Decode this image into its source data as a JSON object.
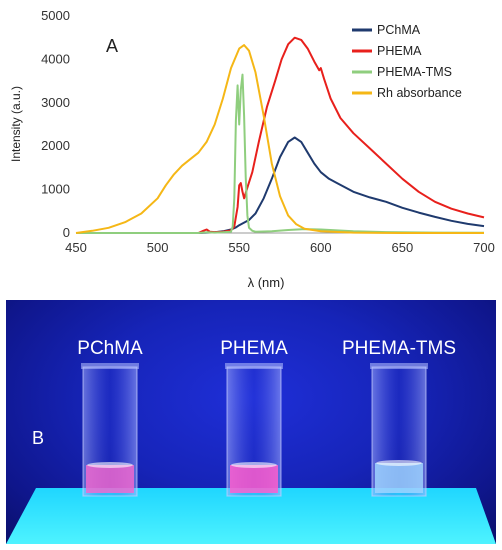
{
  "chart_data": {
    "type": "line",
    "panel_label": "A",
    "xlabel": "λ (nm)",
    "ylabel": "Intensity (a.u.)",
    "xlim": [
      450,
      700
    ],
    "ylim": [
      0,
      5000
    ],
    "x_ticks": [
      450,
      500,
      550,
      600,
      650,
      700
    ],
    "y_ticks": [
      0,
      1000,
      2000,
      3000,
      4000,
      5000
    ],
    "grid": false,
    "legend_position": "top-right",
    "series": [
      {
        "name": "PChMA",
        "color": "#1f3a6e",
        "points": [
          [
            450,
            0
          ],
          [
            525,
            0
          ],
          [
            530,
            10
          ],
          [
            535,
            15
          ],
          [
            540,
            40
          ],
          [
            545,
            80
          ],
          [
            548,
            130
          ],
          [
            550,
            180
          ],
          [
            553,
            240
          ],
          [
            556,
            300
          ],
          [
            560,
            450
          ],
          [
            565,
            800
          ],
          [
            570,
            1250
          ],
          [
            575,
            1750
          ],
          [
            580,
            2100
          ],
          [
            584,
            2200
          ],
          [
            588,
            2100
          ],
          [
            592,
            1850
          ],
          [
            596,
            1600
          ],
          [
            600,
            1400
          ],
          [
            605,
            1250
          ],
          [
            610,
            1150
          ],
          [
            620,
            950
          ],
          [
            630,
            820
          ],
          [
            640,
            720
          ],
          [
            650,
            580
          ],
          [
            660,
            470
          ],
          [
            670,
            370
          ],
          [
            680,
            280
          ],
          [
            690,
            210
          ],
          [
            700,
            160
          ]
        ]
      },
      {
        "name": "PHEMA",
        "color": "#e8201c",
        "points": [
          [
            450,
            0
          ],
          [
            525,
            0
          ],
          [
            528,
            50
          ],
          [
            530,
            80
          ],
          [
            532,
            30
          ],
          [
            535,
            20
          ],
          [
            540,
            30
          ],
          [
            545,
            60
          ],
          [
            547,
            150
          ],
          [
            549,
            600
          ],
          [
            550,
            1100
          ],
          [
            551,
            1150
          ],
          [
            552,
            950
          ],
          [
            553,
            800
          ],
          [
            555,
            1050
          ],
          [
            558,
            1400
          ],
          [
            562,
            2100
          ],
          [
            567,
            2900
          ],
          [
            572,
            3500
          ],
          [
            576,
            4000
          ],
          [
            580,
            4350
          ],
          [
            584,
            4500
          ],
          [
            588,
            4450
          ],
          [
            592,
            4250
          ],
          [
            596,
            3950
          ],
          [
            599,
            3750
          ],
          [
            600,
            3800
          ],
          [
            602,
            3550
          ],
          [
            606,
            3100
          ],
          [
            612,
            2650
          ],
          [
            620,
            2300
          ],
          [
            630,
            1950
          ],
          [
            640,
            1600
          ],
          [
            650,
            1250
          ],
          [
            660,
            950
          ],
          [
            670,
            720
          ],
          [
            680,
            560
          ],
          [
            690,
            450
          ],
          [
            700,
            360
          ]
        ]
      },
      {
        "name": "PHEMA-TMS",
        "color": "#8fce7e",
        "points": [
          [
            450,
            0
          ],
          [
            525,
            0
          ],
          [
            530,
            15
          ],
          [
            535,
            10
          ],
          [
            540,
            15
          ],
          [
            545,
            30
          ],
          [
            546,
            150
          ],
          [
            547,
            800
          ],
          [
            548,
            2600
          ],
          [
            549,
            3400
          ],
          [
            550,
            2500
          ],
          [
            551,
            3300
          ],
          [
            552,
            3650
          ],
          [
            553,
            2700
          ],
          [
            554,
            1300
          ],
          [
            555,
            400
          ],
          [
            556,
            120
          ],
          [
            558,
            50
          ],
          [
            560,
            30
          ],
          [
            570,
            40
          ],
          [
            580,
            70
          ],
          [
            590,
            90
          ],
          [
            600,
            80
          ],
          [
            610,
            60
          ],
          [
            620,
            40
          ],
          [
            640,
            20
          ],
          [
            670,
            10
          ],
          [
            700,
            5
          ]
        ]
      },
      {
        "name": "Rh absorbance",
        "color": "#f5b716",
        "points": [
          [
            450,
            0
          ],
          [
            460,
            50
          ],
          [
            470,
            120
          ],
          [
            480,
            250
          ],
          [
            490,
            450
          ],
          [
            500,
            800
          ],
          [
            505,
            1100
          ],
          [
            510,
            1350
          ],
          [
            515,
            1550
          ],
          [
            520,
            1700
          ],
          [
            525,
            1850
          ],
          [
            530,
            2100
          ],
          [
            535,
            2500
          ],
          [
            540,
            3100
          ],
          [
            545,
            3800
          ],
          [
            550,
            4250
          ],
          [
            553,
            4330
          ],
          [
            556,
            4200
          ],
          [
            560,
            3700
          ],
          [
            565,
            2700
          ],
          [
            570,
            1600
          ],
          [
            575,
            850
          ],
          [
            580,
            400
          ],
          [
            585,
            200
          ],
          [
            590,
            100
          ],
          [
            600,
            40
          ],
          [
            620,
            10
          ],
          [
            650,
            0
          ],
          [
            700,
            0
          ]
        ]
      }
    ]
  },
  "photo": {
    "panel_label": "B",
    "cuvette_labels": [
      "PChMA",
      "PHEMA",
      "PHEMA-TMS"
    ],
    "glow_colors": [
      "#f06ad0",
      "#ff5fcf",
      "#9fd4ff"
    ]
  }
}
